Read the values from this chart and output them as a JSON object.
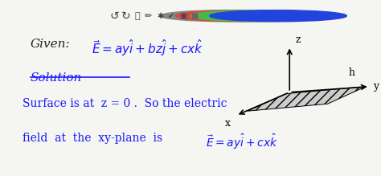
{
  "bg_color": "#f5f5f2",
  "text_color": "#1a1aff",
  "toolbar_bg": "#d8d8d8",
  "given_label": "Given:",
  "given_eq": "$\\vec{E} = ay\\hat{i} + bz\\hat{j} + cx\\hat{k}$",
  "solution_text": "Solution",
  "line1": "Surface is at  z = 0 .  So the electric",
  "line2_pre": "field  at  the  xy-plane  is",
  "line2_eq": "$\\vec{E} = ay\\hat{i} + cx\\hat{k}$",
  "toolbar_colors": [
    "#888888",
    "#dd4444",
    "#44bb44",
    "#2244dd"
  ],
  "figsize": [
    4.74,
    2.19
  ],
  "dpi": 100
}
